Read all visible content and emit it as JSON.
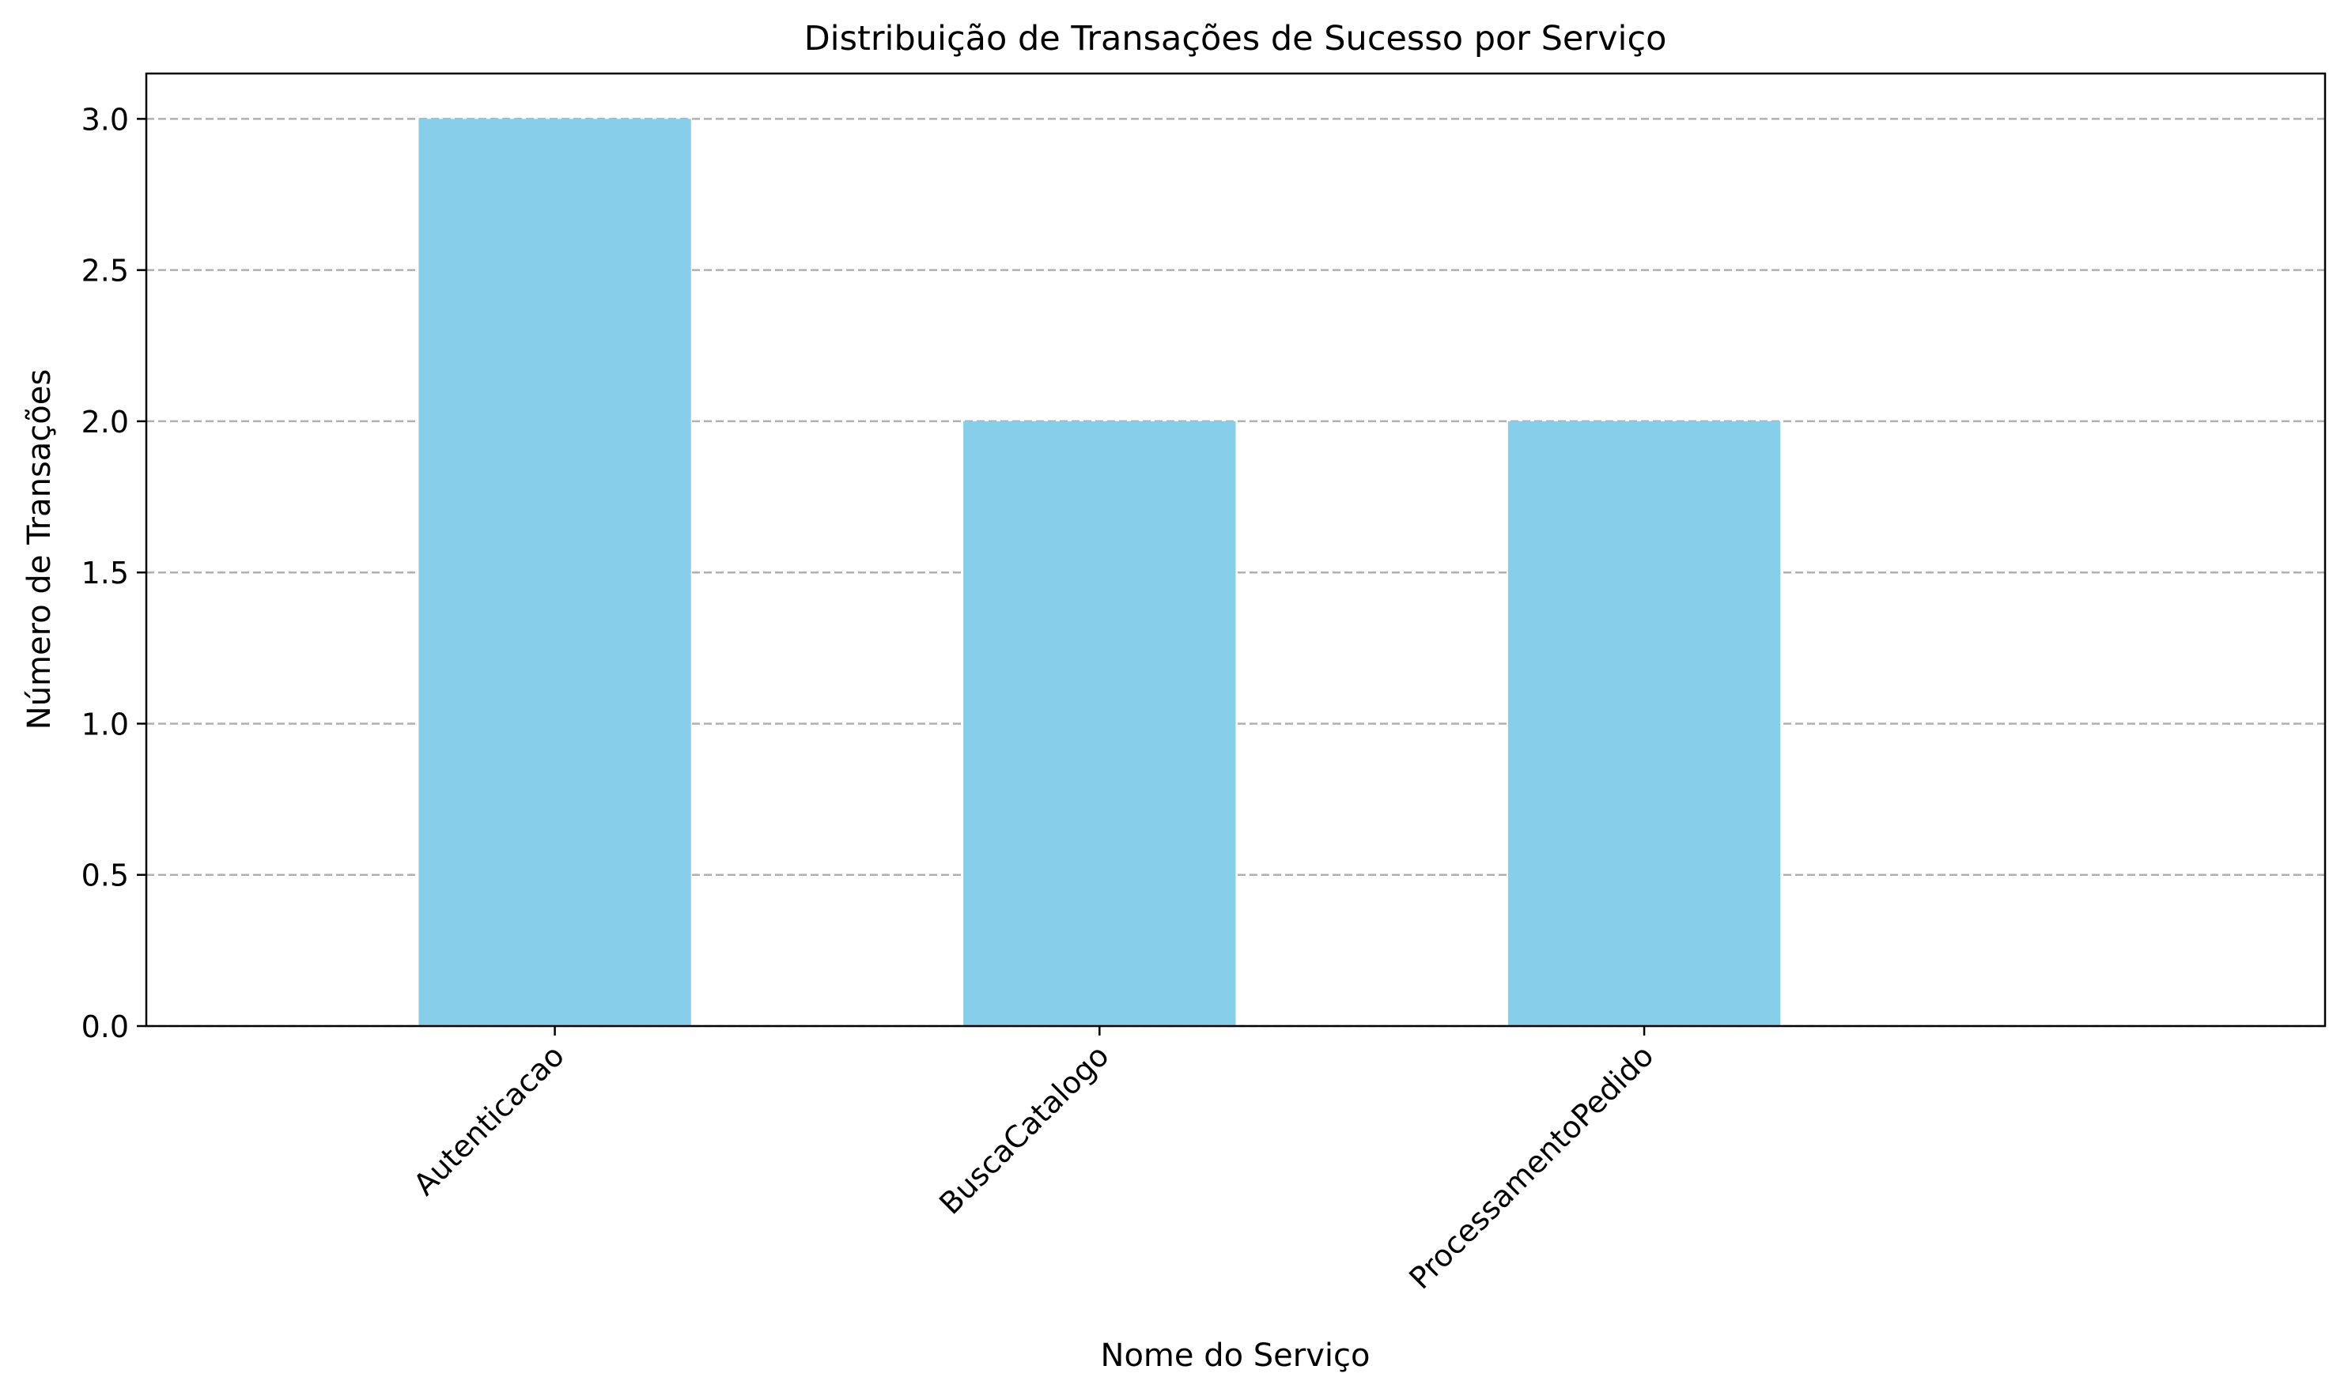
{
  "chart_data": {
    "type": "bar",
    "title": "Distribuição de Transações de Sucesso por Serviço",
    "xlabel": "Nome do Serviço",
    "ylabel": "Número de Transações",
    "categories": [
      "Autenticacao",
      "BuscaCatalogo",
      "ProcessamentoPedido"
    ],
    "values": [
      3,
      2,
      2
    ],
    "ylim": [
      0,
      3.15
    ],
    "yticks": [
      "0.0",
      "0.5",
      "1.0",
      "1.5",
      "2.0",
      "2.5",
      "3.0"
    ],
    "grid": "y, dashed",
    "legend": "none",
    "bar_color": "#87ceeb",
    "grid_color": "#b0b0b0",
    "x_tick_rotation": "45 degrees"
  }
}
